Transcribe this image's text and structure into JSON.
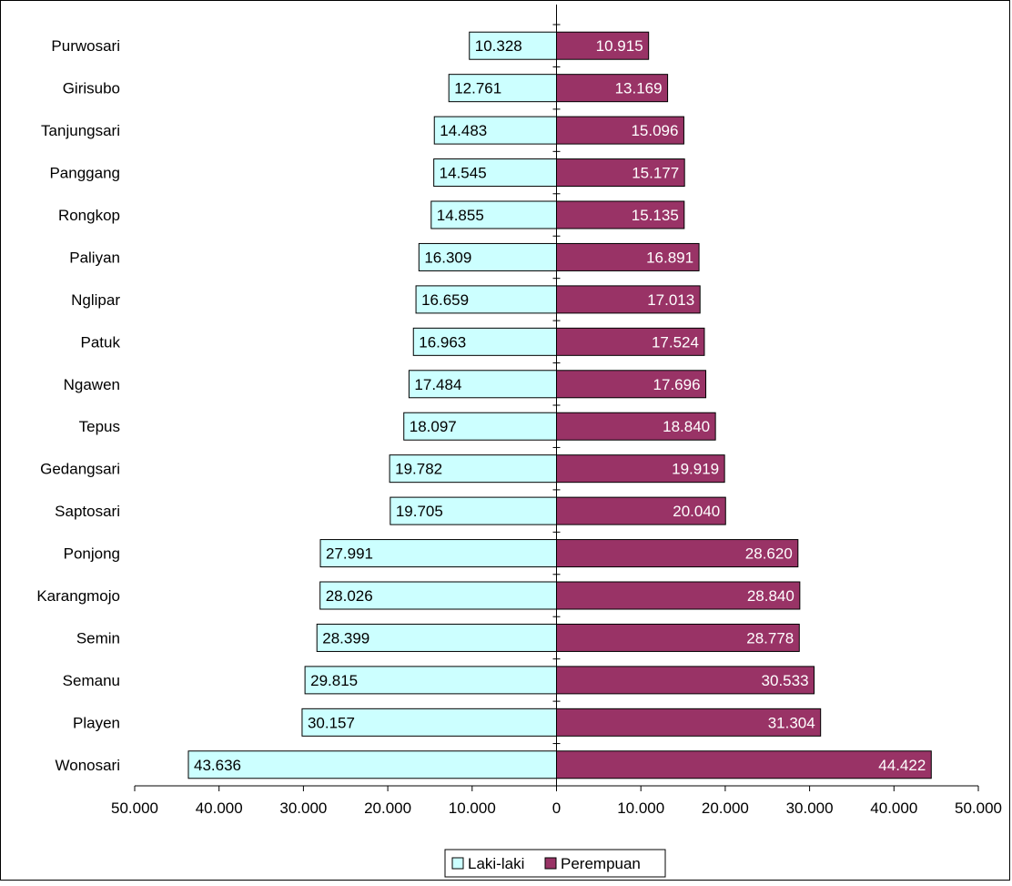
{
  "chart_data": {
    "type": "bar",
    "orientation": "horizontal-diverging",
    "title": "",
    "xlabel": "",
    "ylabel": "",
    "categories": [
      "Purwosari",
      "Girisubo",
      "Tanjungsari",
      "Panggang",
      "Rongkop",
      "Paliyan",
      "Nglipar",
      "Patuk",
      "Ngawen",
      "Tepus",
      "Gedangsari",
      "Saptosari",
      "Ponjong",
      "Karangmojo",
      "Semin",
      "Semanu",
      "Playen",
      "Wonosari"
    ],
    "series": [
      {
        "name": "Laki-laki",
        "color": "#ccffff",
        "values": [
          10328,
          12761,
          14483,
          14545,
          14855,
          16309,
          16659,
          16963,
          17484,
          18097,
          19782,
          19705,
          27991,
          28026,
          28399,
          29815,
          30157,
          43636
        ],
        "labels": [
          "10.328",
          "12.761",
          "14.483",
          "14.545",
          "14.855",
          "16.309",
          "16.659",
          "16.963",
          "17.484",
          "18.097",
          "19.782",
          "19.705",
          "27.991",
          "28.026",
          "28.399",
          "29.815",
          "30.157",
          "43.636"
        ]
      },
      {
        "name": "Perempuan",
        "color": "#993366",
        "values": [
          10915,
          13169,
          15096,
          15177,
          15135,
          16891,
          17013,
          17524,
          17696,
          18840,
          19919,
          20040,
          28620,
          28840,
          28778,
          30533,
          31304,
          44422
        ],
        "labels": [
          "10.915",
          "13.169",
          "15.096",
          "15.177",
          "15.135",
          "16.891",
          "17.013",
          "17.524",
          "17.696",
          "18.840",
          "19.919",
          "20.040",
          "28.620",
          "28.840",
          "28.778",
          "30.533",
          "31.304",
          "44.422"
        ]
      }
    ],
    "xlim": [
      -50000,
      50000
    ],
    "xticks": [
      -50000,
      -40000,
      -30000,
      -20000,
      -10000,
      0,
      10000,
      20000,
      30000,
      40000,
      50000
    ],
    "xtick_labels": [
      "50.000",
      "40.000",
      "30.000",
      "20.000",
      "10.000",
      "0",
      "10.000",
      "20.000",
      "30.000",
      "40.000",
      "50.000"
    ],
    "grid": false,
    "legend": {
      "placement": "bottom-center",
      "entries": [
        "Laki-laki",
        "Perempuan"
      ]
    }
  }
}
